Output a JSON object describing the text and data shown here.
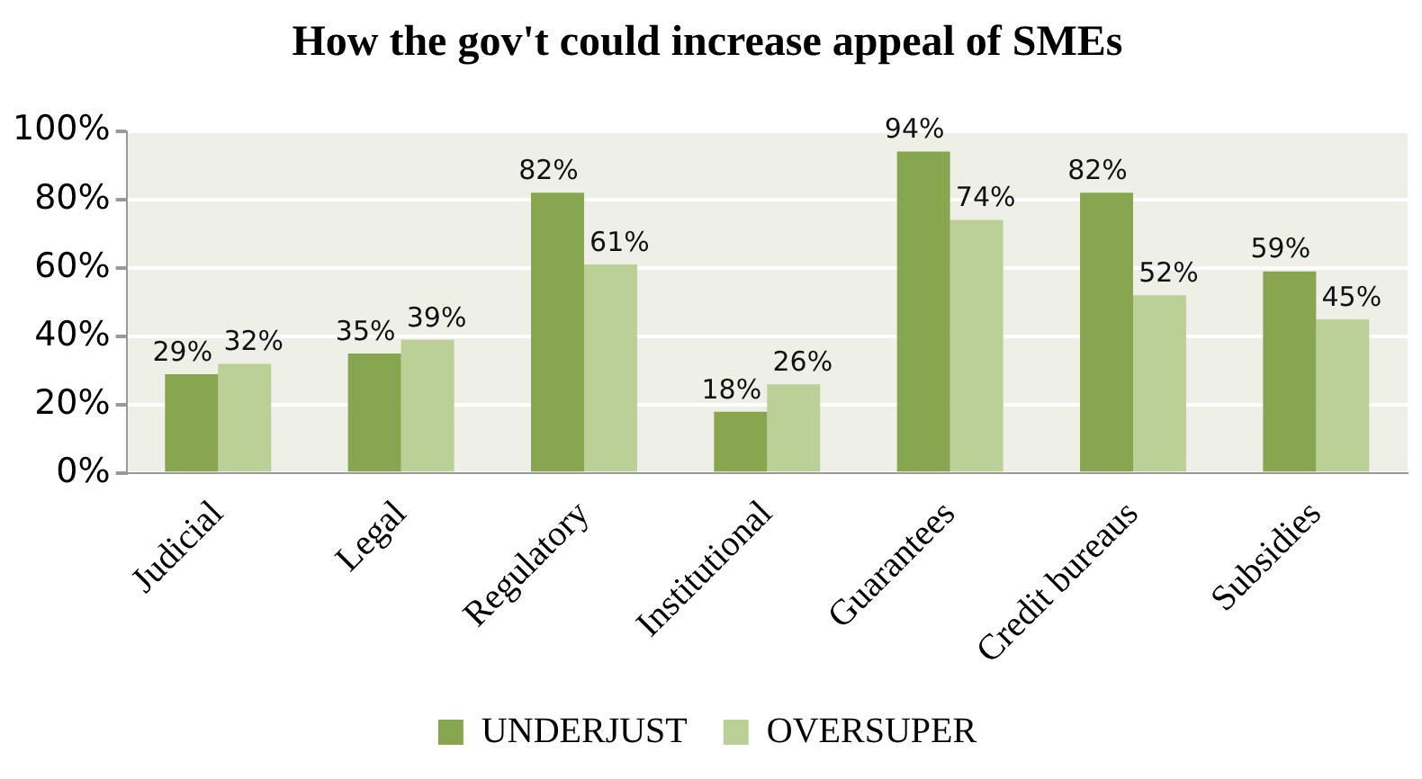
{
  "chart_data": {
    "type": "bar",
    "title": "How the gov't could increase appeal of SMEs",
    "categories": [
      "Judicial",
      "Legal",
      "Regulatory",
      "Institutional",
      "Guarantees",
      "Credit bureaus",
      "Subsidies"
    ],
    "series": [
      {
        "name": "UNDERJUST",
        "color": "#88a54f",
        "values": [
          29,
          35,
          82,
          18,
          94,
          82,
          59
        ],
        "value_labels": [
          "29%",
          "35%",
          "82%",
          "18%",
          "94%",
          "82%",
          "59%"
        ]
      },
      {
        "name": "OVERSUPER",
        "color": "#bad097",
        "values": [
          32,
          39,
          61,
          26,
          74,
          52,
          45
        ],
        "value_labels": [
          "32%",
          "39%",
          "61%",
          "26%",
          "74%",
          "52%",
          "45%"
        ]
      }
    ],
    "ylim": [
      0,
      100
    ],
    "yticks": [
      {
        "value": 0,
        "label": "0%"
      },
      {
        "value": 20,
        "label": "20%"
      },
      {
        "value": 40,
        "label": "40%"
      },
      {
        "value": 60,
        "label": "60%"
      },
      {
        "value": 80,
        "label": "80%"
      },
      {
        "value": 100,
        "label": "100%"
      }
    ],
    "grid": "y",
    "legend": "bottom"
  }
}
